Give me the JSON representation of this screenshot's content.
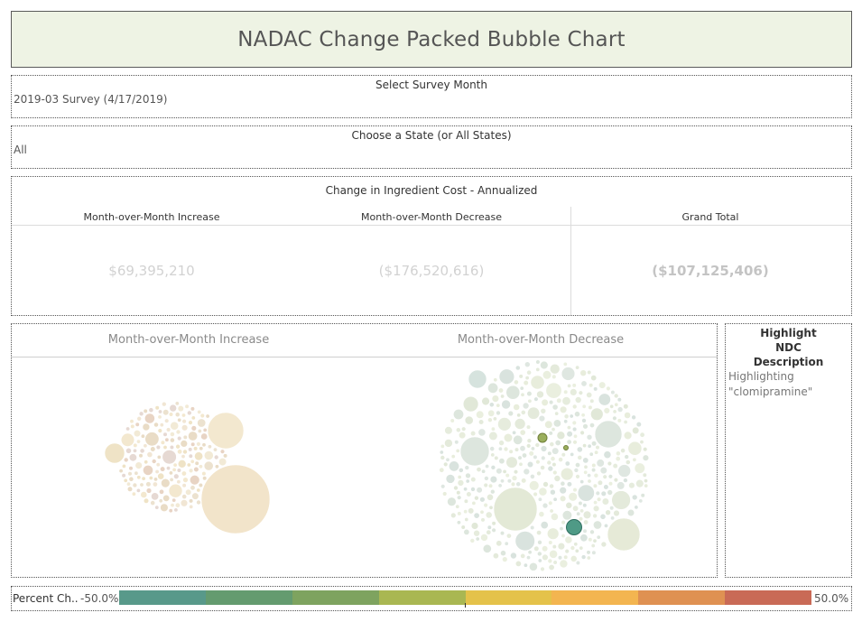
{
  "header": {
    "title": "NADAC Change Packed Bubble Chart"
  },
  "filters": {
    "survey_month": {
      "label": "Select Survey Month",
      "value": "2019-03 Survey (4/17/2019)"
    },
    "state": {
      "label": "Choose a State (or All States)",
      "value": "All"
    }
  },
  "kpi": {
    "title": "Change in Ingredient Cost - Annualized",
    "columns": [
      {
        "header": "Month-over-Month Increase",
        "value": "$69,395,210"
      },
      {
        "header": "Month-over-Month Decrease",
        "value": "($176,520,616)"
      },
      {
        "header": "Grand Total",
        "value": "($107,125,406)"
      }
    ]
  },
  "bubble_panel": {
    "increase_header": "Month-over-Month Increase",
    "decrease_header": "Month-over-Month Decrease"
  },
  "highlight": {
    "title_lines": [
      "Highlight",
      "NDC",
      "Description"
    ],
    "info_lines": [
      "Highlighting",
      "\"clomipramine\""
    ]
  },
  "legend": {
    "title": "Percent Ch..",
    "min": "-50.0%",
    "max": "50.0%",
    "colors": [
      "#58998a",
      "#649b6f",
      "#7ea35f",
      "#a9b752",
      "#e4c24a",
      "#f3b550",
      "#df9152",
      "#c96a56"
    ]
  }
}
